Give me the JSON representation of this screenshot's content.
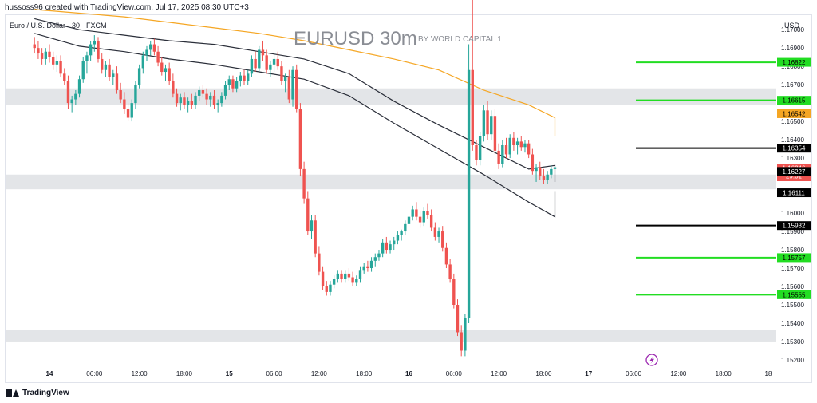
{
  "header": {
    "text": "hussoss96 created with TradingView.com, Jul 17, 2025 08:30 UTC+3"
  },
  "footer": {
    "brand": "TradingView"
  },
  "colors": {
    "up": "#26a69a",
    "down": "#ef5350",
    "green_line": "#22dd22",
    "black_line": "#000000",
    "orange": "#f5a623",
    "zone": "#e3e5e8",
    "grid_text": "#131722",
    "ma_dark": "#2a2e39"
  },
  "chart_data": {
    "type": "candlestick",
    "symbol": "Euro / U.S. Dollar · 30 · FXCM",
    "title": "EURUSD 30m",
    "subtitle": "BY WORLD CAPITAL 1",
    "currency": "USD",
    "ylim": [
      1.15152,
      1.17079
    ],
    "y_ticks": [
      "1.17000",
      "1.16900",
      "1.16800",
      "1.16700",
      "1.16600",
      "1.16500",
      "1.16400",
      "1.16300",
      "1.16200",
      "1.16100",
      "1.16000",
      "1.15900",
      "1.15800",
      "1.15700",
      "1.15600",
      "1.15500",
      "1.15400",
      "1.15300",
      "1.15200"
    ],
    "x_ticks": [
      "14",
      "06:00",
      "12:00",
      "18:00",
      "15",
      "06:00",
      "12:00",
      "18:00",
      "16",
      "06:00",
      "12:00",
      "18:00",
      "17",
      "06:00",
      "12:00",
      "18:00",
      "18"
    ],
    "x_ticks_bold": [
      "14",
      "15",
      "16",
      "17"
    ],
    "time_axis": {
      "start": "Jul 14 00:00",
      "end": "Jul 18 00:00",
      "interval_min": 30
    },
    "series": [
      {
        "name": "",
        "type": "candles",
        "start": "Jul 13 22:00",
        "ohlc": [
          [
            1.1692,
            1.1696,
            1.1687,
            1.169
          ],
          [
            1.169,
            1.1694,
            1.1684,
            1.1687
          ],
          [
            1.1687,
            1.169,
            1.1681,
            1.1684
          ],
          [
            1.1684,
            1.169,
            1.1681,
            1.1688
          ],
          [
            1.1688,
            1.1692,
            1.1682,
            1.1685
          ],
          [
            1.1685,
            1.1688,
            1.1678,
            1.1681
          ],
          [
            1.1681,
            1.1686,
            1.1677,
            1.1683
          ],
          [
            1.1683,
            1.1686,
            1.1674,
            1.1676
          ],
          [
            1.1676,
            1.1679,
            1.167,
            1.1672
          ],
          [
            1.1672,
            1.1675,
            1.1657,
            1.166
          ],
          [
            1.166,
            1.1664,
            1.1655,
            1.1662
          ],
          [
            1.1662,
            1.1667,
            1.1659,
            1.1665
          ],
          [
            1.1665,
            1.1675,
            1.1663,
            1.1673
          ],
          [
            1.1673,
            1.1685,
            1.1671,
            1.1683
          ],
          [
            1.1683,
            1.1688,
            1.1676,
            1.1686
          ],
          [
            1.1686,
            1.1694,
            1.1683,
            1.1692
          ],
          [
            1.1692,
            1.1697,
            1.1688,
            1.1694
          ],
          [
            1.1694,
            1.1696,
            1.1682,
            1.1684
          ],
          [
            1.1684,
            1.1687,
            1.1676,
            1.1678
          ],
          [
            1.1678,
            1.1683,
            1.1674,
            1.1681
          ],
          [
            1.1681,
            1.1684,
            1.1672,
            1.1674
          ],
          [
            1.1674,
            1.1678,
            1.167,
            1.1676
          ],
          [
            1.1676,
            1.168,
            1.1665,
            1.1667
          ],
          [
            1.1667,
            1.1671,
            1.166,
            1.1662
          ],
          [
            1.1662,
            1.1666,
            1.1654,
            1.1657
          ],
          [
            1.1657,
            1.166,
            1.165,
            1.1652
          ],
          [
            1.1652,
            1.1662,
            1.165,
            1.166
          ],
          [
            1.166,
            1.1672,
            1.1657,
            1.167
          ],
          [
            1.167,
            1.1681,
            1.1668,
            1.1679
          ],
          [
            1.1679,
            1.1688,
            1.1676,
            1.1686
          ],
          [
            1.1686,
            1.1691,
            1.1683,
            1.1689
          ],
          [
            1.1689,
            1.1694,
            1.1686,
            1.1692
          ],
          [
            1.1692,
            1.1695,
            1.1686,
            1.1688
          ],
          [
            1.1688,
            1.1691,
            1.168,
            1.1682
          ],
          [
            1.1682,
            1.1685,
            1.1675,
            1.1677
          ],
          [
            1.1677,
            1.1681,
            1.1672,
            1.1679
          ],
          [
            1.1679,
            1.1682,
            1.167,
            1.1672
          ],
          [
            1.1672,
            1.1676,
            1.1663,
            1.1665
          ],
          [
            1.1665,
            1.1668,
            1.1658,
            1.166
          ],
          [
            1.166,
            1.1665,
            1.1656,
            1.1663
          ],
          [
            1.1663,
            1.1666,
            1.1657,
            1.1659
          ],
          [
            1.1659,
            1.1663,
            1.1655,
            1.1661
          ],
          [
            1.1661,
            1.1665,
            1.1657,
            1.1659
          ],
          [
            1.1659,
            1.1666,
            1.1657,
            1.1664
          ],
          [
            1.1664,
            1.1669,
            1.1661,
            1.1667
          ],
          [
            1.1667,
            1.167,
            1.1663,
            1.1665
          ],
          [
            1.1665,
            1.1668,
            1.1659,
            1.1662
          ],
          [
            1.1662,
            1.1666,
            1.1658,
            1.1664
          ],
          [
            1.1664,
            1.1667,
            1.1657,
            1.1659
          ],
          [
            1.1659,
            1.1662,
            1.1655,
            1.166
          ],
          [
            1.166,
            1.1666,
            1.1658,
            1.1664
          ],
          [
            1.1664,
            1.1672,
            1.1662,
            1.167
          ],
          [
            1.167,
            1.1675,
            1.1667,
            1.1673
          ],
          [
            1.1673,
            1.1675,
            1.1666,
            1.1668
          ],
          [
            1.1668,
            1.1674,
            1.1666,
            1.1672
          ],
          [
            1.1672,
            1.1677,
            1.1669,
            1.1675
          ],
          [
            1.1675,
            1.1678,
            1.167,
            1.1672
          ],
          [
            1.1672,
            1.1678,
            1.167,
            1.1676
          ],
          [
            1.1676,
            1.1686,
            1.1674,
            1.1684
          ],
          [
            1.1684,
            1.1688,
            1.1677,
            1.1679
          ],
          [
            1.1679,
            1.1691,
            1.1677,
            1.1689
          ],
          [
            1.1689,
            1.1694,
            1.1683,
            1.1686
          ],
          [
            1.1686,
            1.1689,
            1.1676,
            1.1678
          ],
          [
            1.1678,
            1.1683,
            1.1674,
            1.1681
          ],
          [
            1.1681,
            1.1686,
            1.1677,
            1.1684
          ],
          [
            1.1684,
            1.1688,
            1.1678,
            1.168
          ],
          [
            1.168,
            1.1683,
            1.167,
            1.1672
          ],
          [
            1.1672,
            1.1676,
            1.1666,
            1.1674
          ],
          [
            1.1674,
            1.1678,
            1.166,
            1.1662
          ],
          [
            1.1662,
            1.168,
            1.1658,
            1.1678
          ],
          [
            1.1678,
            1.1681,
            1.1655,
            1.1657
          ],
          [
            1.1657,
            1.166,
            1.162,
            1.1624
          ],
          [
            1.1624,
            1.1628,
            1.1605,
            1.1608
          ],
          [
            1.1608,
            1.1612,
            1.1588,
            1.159
          ],
          [
            1.159,
            1.1599,
            1.1586,
            1.1596
          ],
          [
            1.1596,
            1.1599,
            1.1576,
            1.1578
          ],
          [
            1.1578,
            1.1582,
            1.1566,
            1.1568
          ],
          [
            1.1568,
            1.1571,
            1.1558,
            1.156
          ],
          [
            1.156,
            1.1563,
            1.1555,
            1.1557
          ],
          [
            1.1557,
            1.1563,
            1.1555,
            1.1561
          ],
          [
            1.1561,
            1.1566,
            1.1559,
            1.1564
          ],
          [
            1.1564,
            1.1569,
            1.1562,
            1.1567
          ],
          [
            1.1567,
            1.1569,
            1.1562,
            1.1564
          ],
          [
            1.1564,
            1.1569,
            1.1562,
            1.1567
          ],
          [
            1.1567,
            1.157,
            1.1563,
            1.1565
          ],
          [
            1.1565,
            1.1568,
            1.156,
            1.1562
          ],
          [
            1.1562,
            1.1566,
            1.156,
            1.1564
          ],
          [
            1.1564,
            1.1571,
            1.1562,
            1.1569
          ],
          [
            1.1569,
            1.1573,
            1.1567,
            1.1571
          ],
          [
            1.1571,
            1.1574,
            1.1568,
            1.157
          ],
          [
            1.157,
            1.1576,
            1.1568,
            1.1574
          ],
          [
            1.1574,
            1.1578,
            1.1571,
            1.1576
          ],
          [
            1.1576,
            1.158,
            1.1574,
            1.1578
          ],
          [
            1.1578,
            1.1586,
            1.1576,
            1.1584
          ],
          [
            1.1584,
            1.1587,
            1.1578,
            1.158
          ],
          [
            1.158,
            1.1585,
            1.1578,
            1.1583
          ],
          [
            1.1583,
            1.1587,
            1.158,
            1.1585
          ],
          [
            1.1585,
            1.159,
            1.1583,
            1.1588
          ],
          [
            1.1588,
            1.1591,
            1.1585,
            1.159
          ],
          [
            1.159,
            1.1596,
            1.1588,
            1.1594
          ],
          [
            1.1594,
            1.16,
            1.1592,
            1.1598
          ],
          [
            1.1598,
            1.1604,
            1.1596,
            1.1602
          ],
          [
            1.1602,
            1.1606,
            1.1596,
            1.1598
          ],
          [
            1.1598,
            1.1601,
            1.1592,
            1.1595
          ],
          [
            1.1595,
            1.1603,
            1.1593,
            1.1601
          ],
          [
            1.1601,
            1.1605,
            1.1597,
            1.1599
          ],
          [
            1.1599,
            1.1602,
            1.159,
            1.1592
          ],
          [
            1.1592,
            1.1595,
            1.1585,
            1.1587
          ],
          [
            1.1587,
            1.1592,
            1.1584,
            1.159
          ],
          [
            1.159,
            1.1593,
            1.1579,
            1.1581
          ],
          [
            1.1581,
            1.1584,
            1.157,
            1.1572
          ],
          [
            1.1572,
            1.1575,
            1.1562,
            1.1564
          ],
          [
            1.1564,
            1.1567,
            1.1548,
            1.155
          ],
          [
            1.155,
            1.1553,
            1.1533,
            1.1535
          ],
          [
            1.1535,
            1.1539,
            1.1522,
            1.1525
          ],
          [
            1.1525,
            1.1545,
            1.1522,
            1.1543
          ],
          [
            1.1543,
            1.1692,
            1.154,
            1.1678
          ],
          [
            1.1678,
            1.1727,
            1.1634,
            1.1637
          ],
          [
            1.1637,
            1.164,
            1.1626,
            1.1629
          ],
          [
            1.1629,
            1.1644,
            1.1626,
            1.1642
          ],
          [
            1.1642,
            1.1659,
            1.1639,
            1.1656
          ],
          [
            1.1656,
            1.1661,
            1.164,
            1.1643
          ],
          [
            1.1643,
            1.1656,
            1.164,
            1.1653
          ],
          [
            1.1653,
            1.1657,
            1.1632,
            1.1634
          ],
          [
            1.1634,
            1.1638,
            1.1624,
            1.1627
          ],
          [
            1.1627,
            1.164,
            1.1625,
            1.1637
          ],
          [
            1.1637,
            1.1641,
            1.163,
            1.1632
          ],
          [
            1.1632,
            1.1643,
            1.163,
            1.1641
          ],
          [
            1.1641,
            1.1644,
            1.1634,
            1.1637
          ],
          [
            1.1637,
            1.1641,
            1.1632,
            1.1639
          ],
          [
            1.1639,
            1.1642,
            1.1634,
            1.1636
          ],
          [
            1.1636,
            1.164,
            1.1633,
            1.1638
          ],
          [
            1.1638,
            1.164,
            1.163,
            1.1632
          ],
          [
            1.1632,
            1.1635,
            1.1621,
            1.1623
          ],
          [
            1.1623,
            1.1627,
            1.1617,
            1.1625
          ],
          [
            1.1625,
            1.1628,
            1.1618,
            1.162
          ],
          [
            1.162,
            1.1624,
            1.1616,
            1.1618
          ],
          [
            1.1618,
            1.1623,
            1.1616,
            1.1621
          ],
          [
            1.1621,
            1.1626,
            1.1619,
            1.1624
          ],
          [
            1.1624,
            1.1626,
            1.162,
            1.1625
          ]
        ]
      },
      {
        "name": "",
        "type": "line",
        "color": "#f5a623",
        "start": "Jul 13 22:00",
        "values": [
          1.1711,
          1.1709,
          1.1707,
          1.1704,
          1.1701,
          1.1698,
          1.1694,
          1.1689,
          1.1684,
          1.1678,
          1.1667,
          1.1659,
          1.1652,
          1.1646,
          1.1642
        ]
      },
      {
        "name": "",
        "type": "line",
        "color": "#2a2e39",
        "start": "Jul 13 22:00",
        "values": [
          1.1706,
          1.17,
          1.1697,
          1.1694,
          1.1692,
          1.1688,
          1.1684,
          1.1676,
          1.1661,
          1.1648,
          1.1636,
          1.1624,
          1.1626,
          1.1621,
          1.1617,
          1.1619
        ]
      },
      {
        "name": "",
        "type": "line",
        "color": "#2a2e39",
        "start": "Jul 13 22:00",
        "values": [
          1.1698,
          1.1691,
          1.1688,
          1.1684,
          1.1681,
          1.1677,
          1.1673,
          1.1664,
          1.1649,
          1.1635,
          1.1621,
          1.1606,
          1.1598,
          1.1604,
          1.1611,
          1.1612
        ]
      }
    ],
    "zones": [
      [
        1.1659,
        1.1668
      ],
      [
        1.1613,
        1.1621
      ],
      [
        1.153,
        1.15365
      ]
    ],
    "levels": [
      {
        "price": 1.16822,
        "label": "1.16822",
        "color": "#22dd22"
      },
      {
        "price": 1.16615,
        "label": "1.16615",
        "color": "#22dd22"
      },
      {
        "price": 1.16354,
        "label": "1.16354",
        "color": "#000000"
      },
      {
        "price": 1.15932,
        "label": "1.15932",
        "color": "#000000"
      },
      {
        "price": 1.15757,
        "label": "1.15757",
        "color": "#22dd22"
      },
      {
        "price": 1.15555,
        "label": "1.15555",
        "color": "#22dd22"
      }
    ],
    "badges": [
      {
        "price": 1.16542,
        "label": "1.16542",
        "color": "#f5a623",
        "text_color": "#000000"
      },
      {
        "price": 1.16246,
        "label": "1.16246",
        "sub": "29:01",
        "color": "#ef5350",
        "text_color": "#ffffff"
      },
      {
        "price": 1.16227,
        "label": "1.16227",
        "color": "#000000",
        "text_color": "#ffffff"
      },
      {
        "price": 1.16111,
        "label": "1.16111",
        "color": "#000000",
        "text_color": "#ffffff"
      }
    ],
    "current_price": 1.16246,
    "grid": false,
    "legend": "none"
  }
}
